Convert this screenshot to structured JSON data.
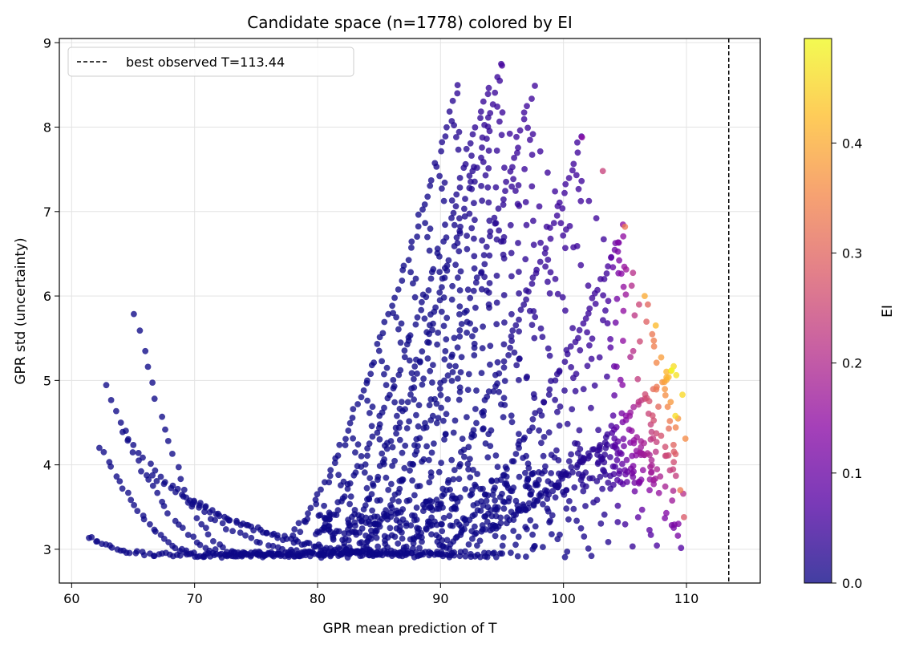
{
  "chart_data": {
    "type": "scatter",
    "title": "Candidate space (n=1778) colored by EI",
    "xlabel": "GPR mean prediction of T",
    "ylabel": "GPR std (uncertainty)",
    "xlim": [
      59,
      116
    ],
    "ylim": [
      2.6,
      9.05
    ],
    "xticks": [
      60,
      70,
      80,
      90,
      100,
      110
    ],
    "yticks": [
      3,
      4,
      5,
      6,
      7,
      8,
      9
    ],
    "grid": true,
    "legend_position": "top-left",
    "reference_line": {
      "orientation": "vertical",
      "x": 113.44,
      "style": "dashed",
      "color": "#000000",
      "label": "best observed T=113.44"
    },
    "colorbar": {
      "label": "EI",
      "range": [
        0.0,
        0.495
      ],
      "ticks": [
        0.0,
        0.1,
        0.2,
        0.3,
        0.4
      ],
      "colormap": "plasma",
      "stops": [
        "#0d0887",
        "#5302a3",
        "#8b0aa5",
        "#b83289",
        "#db5c68",
        "#f48849",
        "#febd2a",
        "#f0f921"
      ]
    },
    "n_points": 1778,
    "families": [
      {
        "x_range": [
          65.2,
          85.0
        ],
        "y_range": [
          5.81,
          2.96
        ],
        "min_at_x": 73.5
      },
      {
        "x_range": [
          62.3,
          80.5
        ],
        "y_range": [
          4.22,
          2.92
        ],
        "min_at_x": 71.0
      },
      {
        "x_range": [
          61.3,
          78.5
        ],
        "y_range": [
          3.15,
          2.94
        ],
        "min_at_x": 67.0
      },
      {
        "x_range": [
          62.8,
          84.5
        ],
        "y_range": [
          4.93,
          2.94
        ],
        "min_at_x": 73.0
      },
      {
        "x_range": [
          64.0,
          91.0
        ],
        "y_range": [
          4.4,
          2.95
        ],
        "min_at_x": 80.0
      },
      {
        "x_range": [
          66.0,
          95.0
        ],
        "y_range": [
          3.9,
          2.95
        ],
        "min_at_x": 86.0
      },
      {
        "x_range": [
          70.0,
          95.0
        ],
        "y_range": [
          3.55,
          2.93
        ],
        "min_at_x": 87.0
      }
    ],
    "ridges": [
      {
        "x_start": 78.0,
        "y_start": 3.2,
        "x_peak": 91.5,
        "y_peak": 8.52
      },
      {
        "x_start": 80.0,
        "y_start": 3.2,
        "x_peak": 94.0,
        "y_peak": 8.5
      },
      {
        "x_start": 82.0,
        "y_start": 3.1,
        "x_peak": 95.0,
        "y_peak": 8.73
      },
      {
        "x_start": 84.0,
        "y_start": 3.1,
        "x_peak": 97.5,
        "y_peak": 8.48
      },
      {
        "x_start": 87.0,
        "y_start": 3.0,
        "x_peak": 101.5,
        "y_peak": 7.88
      },
      {
        "x_start": 90.0,
        "y_start": 3.0,
        "x_peak": 105.0,
        "y_peak": 6.82
      },
      {
        "x_start": 93.0,
        "y_start": 3.2,
        "x_peak": 108.8,
        "y_peak": 5.12
      }
    ],
    "notable_points": [
      {
        "x": 95.0,
        "y": 8.73,
        "ei": 0.06
      },
      {
        "x": 101.5,
        "y": 7.88,
        "ei": 0.14
      },
      {
        "x": 103.2,
        "y": 7.48,
        "ei": 0.24
      },
      {
        "x": 105.0,
        "y": 6.82,
        "ei": 0.33
      },
      {
        "x": 106.6,
        "y": 6.0,
        "ei": 0.4
      },
      {
        "x": 107.5,
        "y": 5.65,
        "ei": 0.42
      },
      {
        "x": 108.8,
        "y": 5.12,
        "ei": 0.495
      },
      {
        "x": 109.1,
        "y": 4.58,
        "ei": 0.46
      },
      {
        "x": 109.5,
        "y": 3.7,
        "ei": 0.33
      },
      {
        "x": 109.8,
        "y": 3.38,
        "ei": 0.28
      },
      {
        "x": 109.3,
        "y": 3.16,
        "ei": 0.12
      }
    ]
  }
}
